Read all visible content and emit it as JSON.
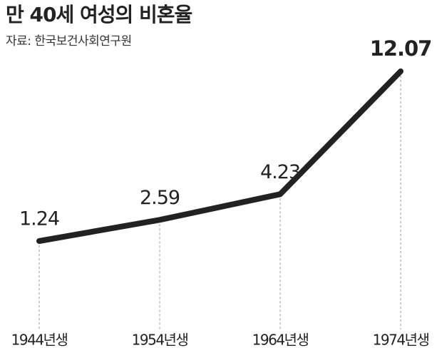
{
  "chart_data": {
    "type": "line",
    "title": "만 40세 여성의 비혼율",
    "subtitle": "자료: 한국보건사회연구원",
    "categories": [
      "1944년생",
      "1954년생",
      "1964년생",
      "1974년생"
    ],
    "values": [
      1.24,
      2.59,
      4.23,
      12.07
    ],
    "color": "#222222"
  }
}
